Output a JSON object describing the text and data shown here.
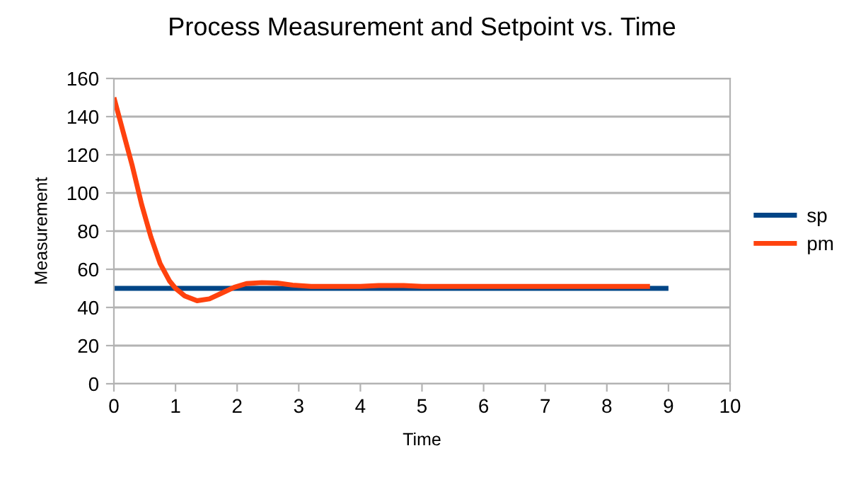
{
  "chart_data": {
    "type": "line",
    "title": "Process Measurement and Setpoint vs. Time",
    "xlabel": "Time",
    "ylabel": "Measurement",
    "xlim": [
      0,
      10
    ],
    "xticks": [
      0,
      1,
      2,
      3,
      4,
      5,
      6,
      7,
      8,
      9,
      10
    ],
    "ylim": [
      0,
      160
    ],
    "yticks": [
      0,
      20,
      40,
      60,
      80,
      100,
      120,
      140,
      160
    ],
    "grid": "y",
    "legend": "right",
    "marker": "none",
    "line_style": "solid",
    "series": [
      {
        "name": "sp",
        "color": "#004586",
        "x": [
          0,
          9
        ],
        "values": [
          50,
          50
        ]
      },
      {
        "name": "pm",
        "color": "#ff420e",
        "x": [
          0,
          0.15,
          0.3,
          0.45,
          0.6,
          0.75,
          0.9,
          1.0,
          1.15,
          1.35,
          1.55,
          1.75,
          1.95,
          2.15,
          2.4,
          2.65,
          2.9,
          3.2,
          3.6,
          4.0,
          4.3,
          4.7,
          5,
          6,
          7,
          8,
          8.7
        ],
        "values": [
          150,
          132,
          114,
          94,
          77,
          63,
          54,
          50,
          46,
          43.5,
          44.5,
          47.5,
          50.5,
          52.5,
          53,
          52.8,
          51.7,
          51,
          51,
          51,
          51.5,
          51.5,
          51,
          51,
          51,
          51,
          51
        ]
      }
    ]
  }
}
